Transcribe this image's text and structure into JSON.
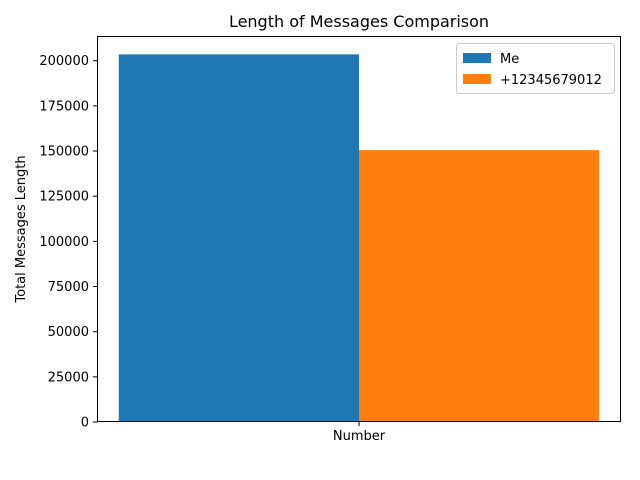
{
  "chart_data": {
    "type": "bar",
    "title": "Length of Messages Comparison",
    "xlabel": "Number",
    "ylabel": "Total Messages Length",
    "categories": [
      "Number"
    ],
    "series": [
      {
        "name": "Me",
        "values": [
          203500
        ],
        "color": "#1f77b4"
      },
      {
        "name": "+12345679012",
        "values": [
          150500
        ],
        "color": "#ff7f0e"
      }
    ],
    "ylim": [
      0,
      213675
    ],
    "yticks": [
      0,
      25000,
      50000,
      75000,
      100000,
      125000,
      150000,
      175000,
      200000
    ],
    "grid": false,
    "legend": "top-right"
  }
}
